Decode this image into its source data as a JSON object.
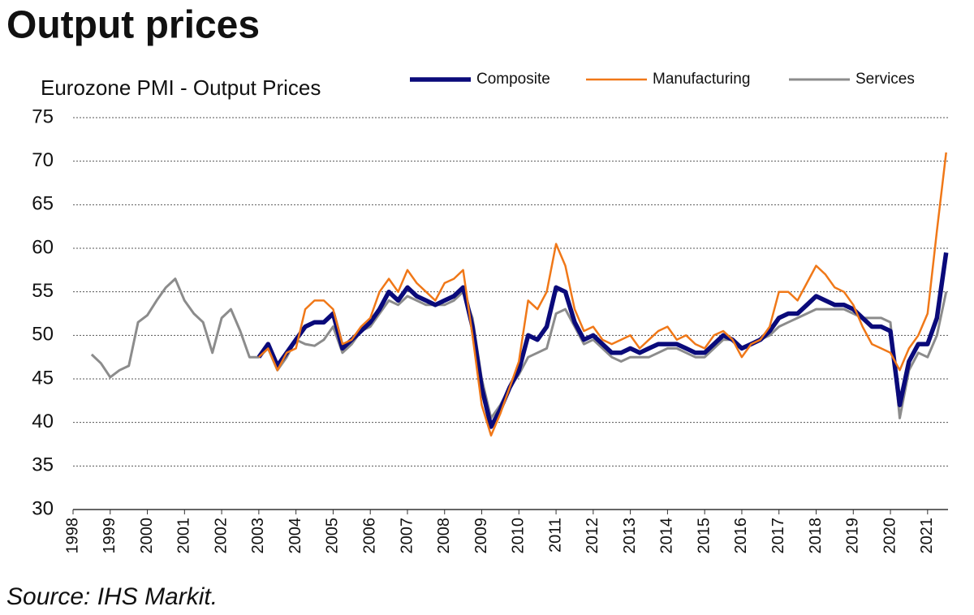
{
  "chart_data": {
    "type": "line",
    "title": "Output prices",
    "subtitle": "Eurozone PMI - Output Prices",
    "source": "Source: IHS Markit.",
    "legend": "top",
    "grid": true,
    "xlim": [
      1998,
      2021.55
    ],
    "xticks": [
      1998,
      1999,
      2000,
      2001,
      2002,
      2003,
      2004,
      2005,
      2006,
      2007,
      2008,
      2009,
      2010,
      2011,
      2012,
      2013,
      2014,
      2015,
      2016,
      2017,
      2018,
      2019,
      2020,
      2021
    ],
    "ylim": [
      30,
      75
    ],
    "yticks": [
      30,
      35,
      40,
      45,
      50,
      55,
      60,
      65,
      70,
      75
    ],
    "x": [
      1998.5,
      1998.75,
      1999,
      1999.25,
      1999.5,
      1999.75,
      2000,
      2000.25,
      2000.5,
      2000.75,
      2001,
      2001.25,
      2001.5,
      2001.75,
      2002,
      2002.25,
      2002.5,
      2002.75,
      2003,
      2003.25,
      2003.5,
      2003.75,
      2004,
      2004.25,
      2004.5,
      2004.75,
      2005,
      2005.25,
      2005.5,
      2005.75,
      2006,
      2006.25,
      2006.5,
      2006.75,
      2007,
      2007.25,
      2007.5,
      2007.75,
      2008,
      2008.25,
      2008.5,
      2008.75,
      2009,
      2009.25,
      2009.5,
      2009.75,
      2010,
      2010.25,
      2010.5,
      2010.75,
      2011,
      2011.25,
      2011.5,
      2011.75,
      2012,
      2012.25,
      2012.5,
      2012.75,
      2013,
      2013.25,
      2013.5,
      2013.75,
      2014,
      2014.25,
      2014.5,
      2014.75,
      2015,
      2015.25,
      2015.5,
      2015.75,
      2016,
      2016.25,
      2016.5,
      2016.75,
      2017,
      2017.25,
      2017.5,
      2017.75,
      2018,
      2018.25,
      2018.5,
      2018.75,
      2019,
      2019.25,
      2019.5,
      2019.75,
      2020,
      2020.25,
      2020.5,
      2020.75,
      2021,
      2021.25,
      2021.5
    ],
    "series": [
      {
        "name": "Services",
        "color": "#8c8c8c",
        "width": 3,
        "values": [
          47.8,
          46.8,
          45.2,
          46,
          46.5,
          51.5,
          52.3,
          54,
          55.5,
          56.5,
          54,
          52.5,
          51.5,
          48,
          52,
          53,
          50.5,
          47.5,
          47.5,
          48.5,
          46,
          47.5,
          49.5,
          49,
          48.8,
          49.5,
          51,
          48,
          49,
          50.5,
          51,
          52.5,
          54,
          53.5,
          54.5,
          54,
          53.5,
          53.5,
          53.5,
          54,
          55,
          52,
          45,
          40.5,
          42,
          44,
          45.5,
          47.5,
          48,
          48.5,
          52.5,
          53,
          51,
          49,
          49.5,
          48.5,
          47.5,
          47,
          47.5,
          47.5,
          47.5,
          48,
          48.5,
          48.5,
          48,
          47.5,
          47.5,
          48.5,
          49.5,
          49.5,
          48.5,
          49,
          49.5,
          50,
          51,
          51.5,
          52,
          52.5,
          53,
          53,
          53,
          53,
          52.5,
          52,
          52,
          52,
          51.5,
          40.5,
          46,
          48,
          47.5,
          50,
          55
        ]
      },
      {
        "name": "Composite",
        "color": "#0a0a7a",
        "width": 5.5,
        "values": [
          null,
          null,
          null,
          null,
          null,
          null,
          null,
          null,
          null,
          null,
          null,
          null,
          null,
          null,
          null,
          null,
          null,
          null,
          47.5,
          49,
          46.5,
          48,
          49.5,
          51,
          51.5,
          51.5,
          52.5,
          48.5,
          49.5,
          50.5,
          51.5,
          53,
          55,
          54,
          55.5,
          54.5,
          54,
          53.5,
          54,
          54.5,
          55.5,
          51,
          44,
          39.5,
          41.5,
          44,
          46,
          50,
          49.5,
          51,
          55.5,
          55,
          51.5,
          49.5,
          50,
          49,
          48,
          48,
          48.5,
          48,
          48.5,
          49,
          49,
          49,
          48.5,
          48,
          48,
          49,
          50,
          49.5,
          48.5,
          49,
          49.5,
          50.5,
          52,
          52.5,
          52.5,
          53.5,
          54.5,
          54,
          53.5,
          53.5,
          53,
          52,
          51,
          51,
          50.5,
          42,
          47,
          49,
          49,
          52,
          59.5
        ]
      },
      {
        "name": "Manufacturing",
        "color": "#f07818",
        "width": 2.5,
        "values": [
          null,
          null,
          null,
          null,
          null,
          null,
          null,
          null,
          null,
          null,
          null,
          null,
          null,
          null,
          null,
          null,
          null,
          null,
          47.5,
          48.5,
          46,
          48,
          48.5,
          53,
          54,
          54,
          53,
          49,
          49.5,
          51,
          52,
          55,
          56.5,
          55,
          57.5,
          56,
          55,
          54,
          56,
          56.5,
          57.5,
          50,
          42,
          38.5,
          41,
          44,
          47,
          54,
          53,
          55,
          60.5,
          58,
          53,
          50.5,
          51,
          49.5,
          49,
          49.5,
          50,
          48.5,
          49.5,
          50.5,
          51,
          49.5,
          50,
          49,
          48.5,
          50,
          50.5,
          49.5,
          47.5,
          49,
          49.5,
          51,
          55,
          55,
          54,
          56,
          58,
          57,
          55.5,
          55,
          53.5,
          51,
          49,
          48.5,
          48,
          46,
          48.5,
          50,
          52.5,
          62,
          71
        ]
      }
    ],
    "legend_order": [
      "Composite",
      "Manufacturing",
      "Services"
    ]
  }
}
